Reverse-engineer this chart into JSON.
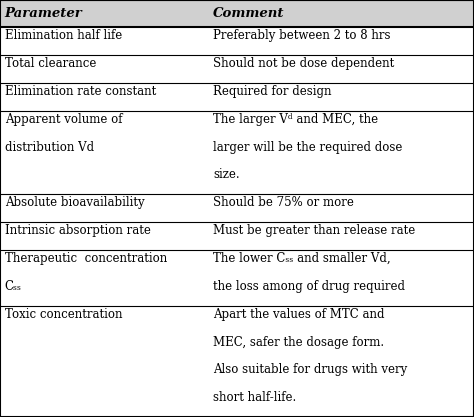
{
  "col1_header": "Parameter",
  "col2_header": "Comment",
  "header_bg": "#d0d0d0",
  "bg_color": "#ffffff",
  "border_color": "#000000",
  "text_color": "#000000",
  "font_size": 8.5,
  "header_font_size": 9.5,
  "col_split": 0.435,
  "rows": [
    {
      "param_lines": [
        "Elimination half life"
      ],
      "comment_lines": [
        "Preferably between 2 to 8 hrs"
      ]
    },
    {
      "param_lines": [
        "Total clearance"
      ],
      "comment_lines": [
        "Should not be dose dependent"
      ]
    },
    {
      "param_lines": [
        "Elimination rate constant"
      ],
      "comment_lines": [
        "Required for design"
      ]
    },
    {
      "param_lines": [
        "Apparent volume of",
        "distribution Vd",
        ""
      ],
      "comment_lines": [
        "The larger Vᵈ and MEC, the",
        "larger will be the required dose",
        "size."
      ]
    },
    {
      "param_lines": [
        "Absolute bioavailability"
      ],
      "comment_lines": [
        "Should be 75% or more"
      ]
    },
    {
      "param_lines": [
        "Intrinsic absorption rate"
      ],
      "comment_lines": [
        "Must be greater than release rate"
      ]
    },
    {
      "param_lines": [
        "Therapeutic  concentration",
        "Cₛₛ"
      ],
      "comment_lines": [
        "The lower Cₛₛ and smaller Vd,",
        "the loss among of drug required"
      ]
    },
    {
      "param_lines": [
        "Toxic concentration",
        "",
        "",
        ""
      ],
      "comment_lines": [
        "Apart the values of MTC and",
        "MEC, safer the dosage form.",
        "Also suitable for drugs with very",
        "short half-life."
      ]
    }
  ]
}
